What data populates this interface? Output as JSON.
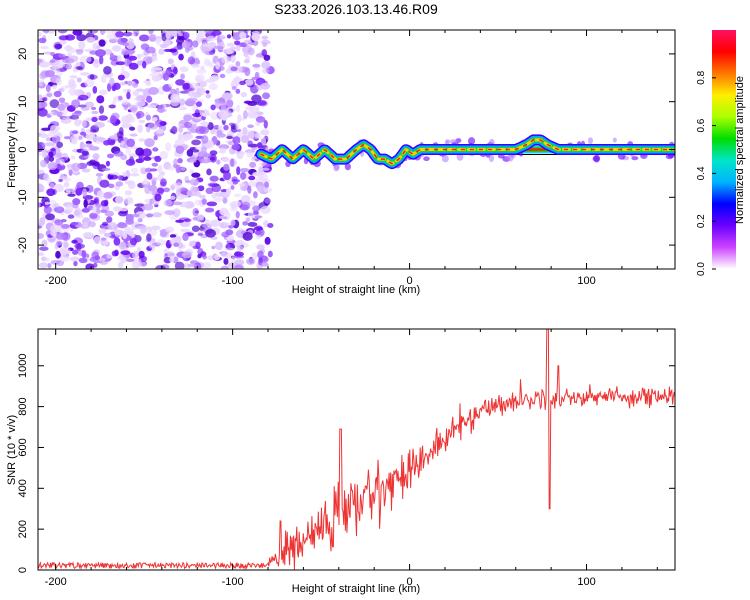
{
  "title": "S233.2026.103.13.46.R09",
  "chart_data": [
    {
      "type": "heatmap",
      "name": "spectrogram",
      "xlabel": "Height of straight line (km)",
      "ylabel": "Frequency (Hz)",
      "xlim": [
        -210,
        150
      ],
      "ylim": [
        -25,
        25
      ],
      "xticks": [
        -200,
        -100,
        0,
        100
      ],
      "yticks": [
        -20,
        -10,
        0,
        10,
        20
      ],
      "colorbar": {
        "label": "Normalized spectral amplitude",
        "range": [
          0.0,
          1.0
        ],
        "ticks": [
          "0.0",
          "0.2",
          "0.4",
          "0.6",
          "0.8"
        ],
        "tick_values": [
          0.0,
          0.2,
          0.4,
          0.6,
          0.8
        ],
        "colormap": [
          "#ffffff",
          "#cc44ff",
          "#6a00ff",
          "#0000ff",
          "#00b4ff",
          "#00e5c8",
          "#00dd00",
          "#aaff00",
          "#ffee00",
          "#ff7700",
          "#ff0000",
          "#ff1060"
        ]
      },
      "noise_region_x": [
        -210,
        -82
      ],
      "signal_track": {
        "x": [
          -84,
          -78,
          -72,
          -66,
          -60,
          -54,
          -48,
          -42,
          -36,
          -30,
          -26,
          -22,
          -18,
          -14,
          -10,
          -6,
          -2,
          2,
          6,
          10,
          20,
          40,
          60,
          66,
          70,
          74,
          78,
          84,
          90,
          150
        ],
        "freq": [
          -1,
          -2,
          0,
          -2,
          0,
          -2,
          0,
          -2,
          -2,
          0,
          1,
          0,
          -2,
          -2,
          -3,
          -2,
          0,
          -1,
          0,
          0,
          0,
          0,
          0,
          1,
          2,
          2,
          1,
          0,
          0,
          0
        ]
      },
      "continuous_line_x_start": 60
    },
    {
      "type": "line",
      "name": "snr",
      "xlabel": "Height of straight line (km)",
      "ylabel": "SNR (10 * v/v)",
      "xlim": [
        -210,
        150
      ],
      "ylim": [
        0,
        1180
      ],
      "xticks": [
        -200,
        -100,
        0,
        100
      ],
      "yticks": [
        0,
        200,
        400,
        600,
        800,
        1000
      ],
      "color": "#ee3333",
      "envelope": {
        "x": [
          -210,
          -85,
          -80,
          -75,
          -70,
          -60,
          -50,
          -40,
          -30,
          -20,
          -10,
          0,
          10,
          20,
          30,
          40,
          50,
          60,
          70,
          80,
          100,
          120,
          150
        ],
        "mean": [
          25,
          25,
          30,
          50,
          90,
          140,
          200,
          280,
          320,
          380,
          430,
          500,
          560,
          640,
          720,
          780,
          810,
          830,
          840,
          840,
          850,
          850,
          850
        ],
        "noise": [
          14,
          14,
          20,
          40,
          80,
          110,
          140,
          160,
          140,
          120,
          100,
          90,
          80,
          70,
          60,
          55,
          50,
          50,
          45,
          45,
          45,
          45,
          45
        ]
      },
      "spikes": [
        {
          "x": -73,
          "y": 240
        },
        {
          "x": -39,
          "y": 690
        },
        {
          "x": 78,
          "y": 1180
        },
        {
          "x": 79,
          "y": 300
        },
        {
          "x": 84,
          "y": 1000
        }
      ]
    }
  ]
}
